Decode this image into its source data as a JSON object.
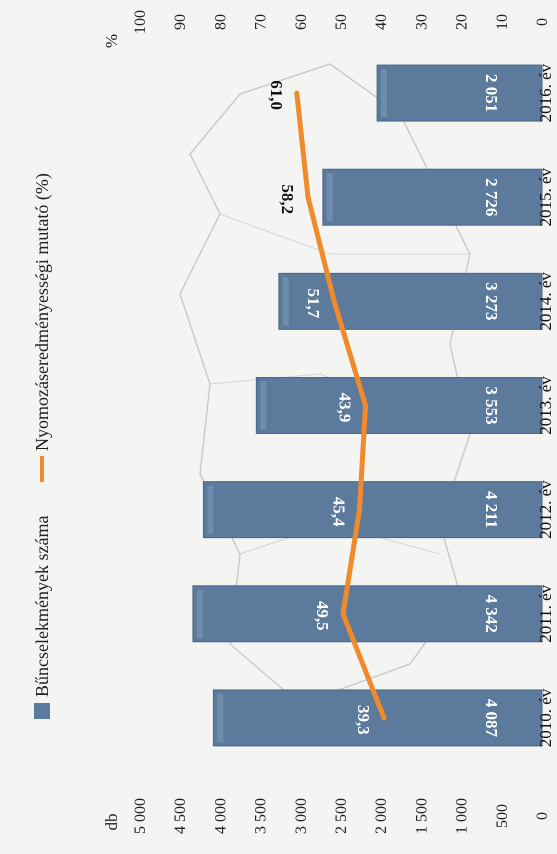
{
  "chart_data": {
    "type": "bar",
    "categories": [
      "2010. év",
      "2011. év",
      "2012. év",
      "2013. év",
      "2014. év",
      "2015. év",
      "2016. év"
    ],
    "series": [
      {
        "name": "Bűncselekmények száma",
        "type": "bar",
        "axis": "left",
        "values": [
          4087,
          4342,
          4211,
          3553,
          3273,
          2726,
          2051
        ],
        "value_labels": [
          "4 087",
          "4 342",
          "4 211",
          "3 553",
          "3 273",
          "2 726",
          "2 051"
        ]
      },
      {
        "name": "Nyomozáseredményességi mutató (%)",
        "type": "line",
        "axis": "right",
        "values": [
          39.3,
          49.5,
          45.4,
          43.9,
          51.7,
          58.2,
          61.0
        ],
        "value_labels": [
          "39,3",
          "49,5",
          "45,4",
          "43,9",
          "51,7",
          "58,2",
          "61,0"
        ]
      }
    ],
    "y_left": {
      "unit": "db",
      "ylim": [
        0,
        5000
      ],
      "ticks": [
        "0",
        "500",
        "1 000",
        "1 500",
        "2 000",
        "2 500",
        "3 000",
        "3 500",
        "4 000",
        "4 500",
        "5 000"
      ]
    },
    "y_right": {
      "unit": "%",
      "ylim": [
        0,
        100
      ],
      "ticks": [
        "0",
        "10",
        "20",
        "30",
        "40",
        "50",
        "60",
        "70",
        "80",
        "90",
        "100"
      ]
    },
    "legend": {
      "position": "top"
    },
    "grid": false,
    "colors": {
      "bar": "#5b7a9c",
      "bar_highlight": "#7d98b6",
      "line": "#f08a2b"
    }
  }
}
